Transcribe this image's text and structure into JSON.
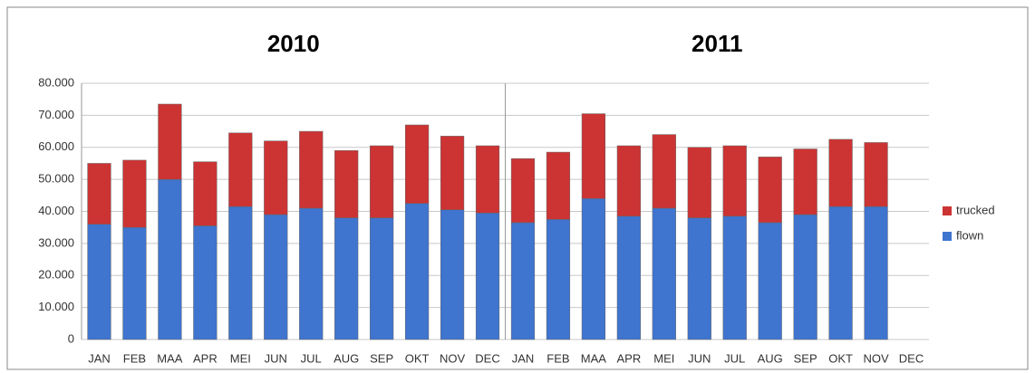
{
  "chart_data": {
    "type": "bar",
    "stacked": true,
    "annotations": [
      "2010",
      "2011"
    ],
    "categories": [
      "JAN",
      "FEB",
      "MAA",
      "APR",
      "MEI",
      "JUN",
      "JUL",
      "AUG",
      "SEP",
      "OKT",
      "NOV",
      "DEC",
      "JAN",
      "FEB",
      "MAA",
      "APR",
      "MEI",
      "JUN",
      "JUL",
      "AUG",
      "SEP",
      "OKT",
      "NOV",
      "DEC"
    ],
    "series": [
      {
        "name": "flown",
        "color": "#3f74cf",
        "values": [
          36000,
          35000,
          50000,
          35500,
          41500,
          39000,
          41000,
          38000,
          38000,
          42500,
          40500,
          39500,
          36500,
          37500,
          44000,
          38500,
          41000,
          38000,
          38500,
          36500,
          39000,
          41500,
          41500,
          null
        ]
      },
      {
        "name": "trucked",
        "color": "#cc3333",
        "values": [
          19000,
          21000,
          23500,
          20000,
          23000,
          23000,
          24000,
          21000,
          22500,
          24500,
          23000,
          21000,
          20000,
          21000,
          26500,
          22000,
          23000,
          22000,
          22000,
          20500,
          20500,
          21000,
          20000,
          null
        ]
      }
    ],
    "ylim": [
      0,
      80000
    ],
    "yticks": [
      0,
      {
        "value": 10000,
        "label": "10.000"
      },
      {
        "value": 20000,
        "label": "20.000"
      },
      {
        "value": 30000,
        "label": "30.000"
      },
      {
        "value": 40000,
        "label": "40.000"
      },
      {
        "value": 50000,
        "label": "50.000"
      },
      {
        "value": 60000,
        "label": "60.000"
      },
      {
        "value": 70000,
        "label": "70.000"
      },
      {
        "value": 80000,
        "label": "80.000"
      }
    ],
    "grid": true,
    "legend": "right"
  }
}
